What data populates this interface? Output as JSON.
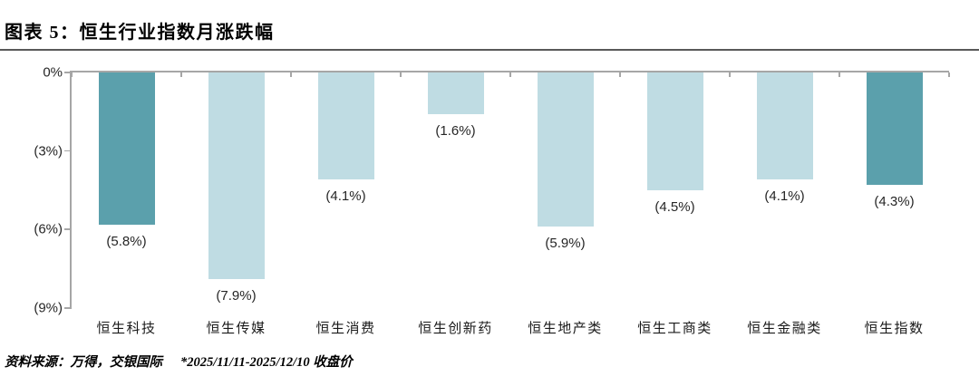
{
  "header": {
    "title": "图表 5：恒生行业指数月涨跌幅"
  },
  "footer": {
    "source": "资料来源：万得，交银国际",
    "note": "*2025/11/11-2025/12/10 收盘价"
  },
  "theme": {
    "highlight_bar_color": "#5BA0AC",
    "base_bar_color": "#BFDCE3",
    "axis_color": "#A6A6A6",
    "title_rule_color": "#595959",
    "text_color": "#262626"
  },
  "chart_data": {
    "type": "bar",
    "title": "恒生行业指数月涨跌幅",
    "xlabel": "",
    "ylabel": "",
    "categories": [
      "恒生科技",
      "恒生传媒",
      "恒生消费",
      "恒生创新药",
      "恒生地产类",
      "恒生工商类",
      "恒生金融类",
      "恒生指数"
    ],
    "values": [
      -5.8,
      -7.9,
      -4.1,
      -1.6,
      -5.9,
      -4.5,
      -4.1,
      -4.3
    ],
    "value_labels": [
      "(5.8%)",
      "(7.9%)",
      "(4.1%)",
      "(1.6%)",
      "(5.9%)",
      "(4.5%)",
      "(4.1%)",
      "(4.3%)"
    ],
    "bar_colors": [
      "#5BA0AC",
      "#BFDCE3",
      "#BFDCE3",
      "#BFDCE3",
      "#BFDCE3",
      "#BFDCE3",
      "#BFDCE3",
      "#5BA0AC"
    ],
    "ylim": [
      -9,
      0
    ],
    "ytick_values": [
      0,
      -3,
      -6,
      -9
    ],
    "ytick_labels": [
      "0%",
      "(3%)",
      "(6%)",
      "(9%)"
    ],
    "grid": false,
    "legend": false
  }
}
